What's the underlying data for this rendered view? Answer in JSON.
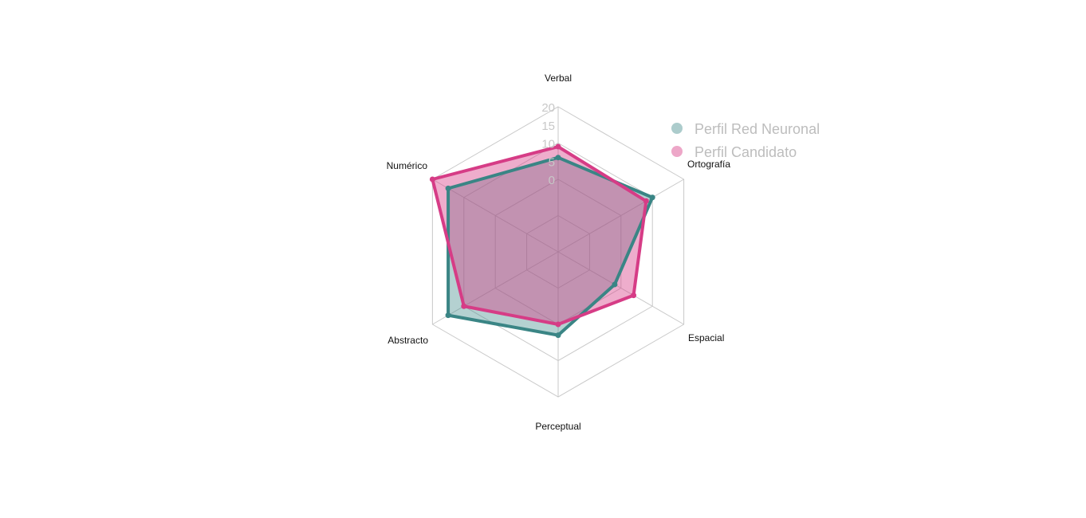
{
  "chart_data": {
    "type": "radar",
    "title": "",
    "axes": [
      "Verbal",
      "Ortografía",
      "Espacial",
      "Perceptual",
      "Abstracto",
      "Numérico"
    ],
    "ticks": [
      "0",
      "5",
      "10",
      "15",
      "20"
    ],
    "range": [
      -20,
      20
    ],
    "grid": true,
    "legend_position": "top-right",
    "series": [
      {
        "name": "Perfil Red Neuronal",
        "values": [
          6,
          10,
          -2,
          3,
          15,
          15
        ],
        "color": "#3a8585",
        "fill": "rgba(58,133,133,0.38)"
      },
      {
        "name": "Perfil Candidato",
        "values": [
          9,
          8,
          4,
          0,
          10,
          20
        ],
        "color": "#d63c86",
        "fill": "rgba(214,60,134,0.42)"
      }
    ]
  }
}
